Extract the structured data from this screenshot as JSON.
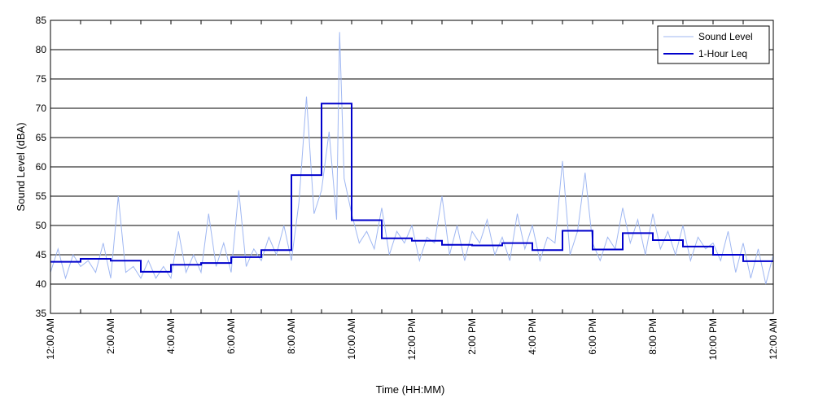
{
  "chart_data": {
    "type": "line",
    "title": "",
    "xlabel": "Time (HH:MM)",
    "ylabel": "Sound Level (dBA)",
    "ylim": [
      35,
      85
    ],
    "yticks": [
      35,
      40,
      45,
      50,
      55,
      60,
      65,
      70,
      75,
      80,
      85
    ],
    "xlim_hours": [
      0,
      24
    ],
    "xtick_labels": [
      "12:00 AM",
      "2:00 AM",
      "4:00 AM",
      "6:00 AM",
      "8:00 AM",
      "10:00 AM",
      "12:00 PM",
      "2:00 PM",
      "4:00 PM",
      "6:00 PM",
      "8:00 PM",
      "10:00 PM",
      "12:00 AM"
    ],
    "grid": "horizontal",
    "legend_position": "top-right",
    "series": [
      {
        "name": "Sound Level",
        "color": "#9fb7f2",
        "style": "thin",
        "x_hours": [
          0.0,
          0.25,
          0.5,
          0.75,
          1.0,
          1.25,
          1.5,
          1.75,
          2.0,
          2.25,
          2.5,
          2.75,
          3.0,
          3.25,
          3.5,
          3.75,
          4.0,
          4.25,
          4.5,
          4.75,
          5.0,
          5.25,
          5.5,
          5.75,
          6.0,
          6.25,
          6.5,
          6.75,
          7.0,
          7.25,
          7.5,
          7.75,
          8.0,
          8.25,
          8.5,
          8.75,
          9.0,
          9.25,
          9.5,
          9.6,
          9.75,
          10.0,
          10.25,
          10.5,
          10.75,
          11.0,
          11.25,
          11.5,
          11.75,
          12.0,
          12.25,
          12.5,
          12.75,
          13.0,
          13.25,
          13.5,
          13.75,
          14.0,
          14.25,
          14.5,
          14.75,
          15.0,
          15.25,
          15.5,
          15.75,
          16.0,
          16.25,
          16.5,
          16.75,
          17.0,
          17.25,
          17.5,
          17.75,
          18.0,
          18.25,
          18.5,
          18.75,
          19.0,
          19.25,
          19.5,
          19.75,
          20.0,
          20.25,
          20.5,
          20.75,
          21.0,
          21.25,
          21.5,
          21.75,
          22.0,
          22.25,
          22.5,
          22.75,
          23.0,
          23.25,
          23.5,
          23.75,
          24.0
        ],
        "values": [
          42,
          46,
          41,
          45,
          43,
          44,
          42,
          47,
          41,
          55,
          42,
          43,
          41,
          44,
          41,
          43,
          41,
          49,
          42,
          45,
          42,
          52,
          43,
          47,
          42,
          56,
          43,
          46,
          44,
          48,
          45,
          50,
          44,
          54,
          72,
          52,
          56,
          66,
          51,
          83,
          58,
          52,
          47,
          49,
          46,
          53,
          45,
          49,
          47,
          50,
          44,
          48,
          47,
          55,
          45,
          50,
          44,
          49,
          47,
          51,
          45,
          48,
          44,
          52,
          46,
          50,
          44,
          48,
          47,
          61,
          45,
          49,
          59,
          47,
          44,
          48,
          46,
          53,
          47,
          51,
          45,
          52,
          46,
          49,
          45,
          50,
          44,
          48,
          46,
          47,
          44,
          49,
          42,
          47,
          41,
          46,
          40,
          45
        ]
      },
      {
        "name": "1-Hour Leq",
        "color": "#0000cc",
        "style": "step",
        "x_hours": [
          0,
          1,
          2,
          3,
          4,
          5,
          6,
          7,
          8,
          9,
          10,
          11,
          12,
          13,
          14,
          15,
          16,
          17,
          18,
          19,
          20,
          21,
          22,
          23
        ],
        "values": [
          43.8,
          44.3,
          44.0,
          42.1,
          43.3,
          43.6,
          44.6,
          45.8,
          58.6,
          70.8,
          50.9,
          47.8,
          47.4,
          46.7,
          46.6,
          47.0,
          45.8,
          49.1,
          45.9,
          48.7,
          47.5,
          46.4,
          45.0,
          43.9
        ]
      }
    ]
  }
}
